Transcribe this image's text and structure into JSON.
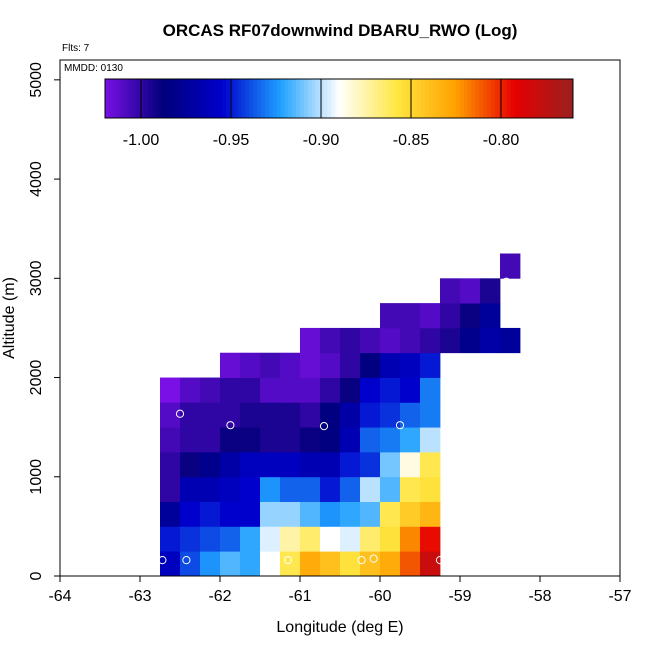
{
  "chart_data": {
    "type": "heatmap",
    "title": "ORCAS RF07downwind DBARU_RWO (Log)",
    "annotations": {
      "flights": "Flts: 7",
      "date": "MMDD: 0130"
    },
    "xlabel": "Longitude (deg E)",
    "ylabel": "Altitude (m)",
    "xlim": [
      -64,
      -57
    ],
    "ylim": [
      0,
      5200
    ],
    "xticks": [
      -64,
      -63,
      -62,
      -61,
      -60,
      -59,
      -58,
      -57
    ],
    "xtick_labels": [
      "-64",
      "-63",
      "-62",
      "-61",
      "-60",
      "-59",
      "-58",
      "-57"
    ],
    "yticks": [
      0,
      1000,
      2000,
      3000,
      4000,
      5000
    ],
    "ytick_labels": [
      "0",
      "1000",
      "2000",
      "3000",
      "4000",
      "5000"
    ],
    "colorbar": {
      "min": -1.02,
      "max": -0.76,
      "ticks": [
        -1.0,
        -0.95,
        -0.9,
        -0.85,
        -0.8
      ],
      "tick_labels": [
        "-1.00",
        "-0.95",
        "-0.90",
        "-0.85",
        "-0.80"
      ],
      "colors": [
        "#7a10e6",
        "#00007a",
        "#0000cc",
        "#1ea0ff",
        "#ffffff",
        "#ffe640",
        "#ffa000",
        "#e60000",
        "#9a2020"
      ]
    },
    "cell": {
      "lon_width": 0.25,
      "alt_height": 250
    },
    "rows": [
      {
        "alt": 0,
        "lon0": -62.75,
        "values": [
          -0.96,
          -0.94,
          -0.925,
          -0.915,
          -0.92,
          -0.89,
          -0.86,
          -0.83,
          -0.84,
          -0.855,
          -0.84,
          -0.83,
          -0.81,
          -0.78
        ]
      },
      {
        "alt": 250,
        "lon0": -62.75,
        "values": [
          -0.95,
          -0.945,
          -0.94,
          -0.935,
          -0.92,
          -0.895,
          -0.875,
          -0.865,
          -0.89,
          -0.895,
          -0.865,
          -0.855,
          -0.82,
          -0.795
        ]
      },
      {
        "alt": 500,
        "lon0": -62.75,
        "values": [
          -0.975,
          -0.955,
          -0.95,
          -0.955,
          -0.955,
          -0.905,
          -0.905,
          -0.915,
          -0.925,
          -0.92,
          -0.915,
          -0.86,
          -0.845,
          -0.835
        ]
      },
      {
        "alt": 750,
        "lon0": -62.75,
        "values": [
          -1.0,
          -0.965,
          -0.965,
          -0.96,
          -0.955,
          -0.925,
          -0.935,
          -0.935,
          -0.95,
          -0.935,
          -0.9,
          -0.915,
          -0.86,
          -0.855
        ]
      },
      {
        "alt": 1000,
        "lon0": -62.75,
        "values": [
          -1.0,
          -0.99,
          -0.98,
          -0.97,
          -0.96,
          -0.96,
          -0.96,
          -0.965,
          -0.965,
          -0.95,
          -0.945,
          -0.91,
          -0.885,
          -0.86
        ]
      },
      {
        "alt": 1250,
        "lon0": -62.75,
        "values": [
          -1.005,
          -1.0,
          -1.0,
          -0.99,
          -0.99,
          -0.995,
          -0.995,
          -0.99,
          -0.985,
          -0.965,
          -0.935,
          -0.93,
          -0.92,
          -0.9
        ]
      },
      {
        "alt": 1500,
        "lon0": -62.75,
        "values": [
          -1.01,
          -1.0,
          -1.0,
          -1.0,
          -0.995,
          -0.995,
          -0.995,
          -1.0,
          -0.985,
          -0.97,
          -0.95,
          -0.945,
          -0.935,
          -0.93
        ]
      },
      {
        "alt": 1750,
        "lon0": -62.75,
        "values": [
          -1.02,
          -1.01,
          -1.005,
          -1.0,
          -1.0,
          -1.01,
          -1.01,
          -1.01,
          -1.0,
          -0.99,
          -0.955,
          -0.95,
          -0.955,
          -0.93
        ]
      },
      {
        "alt": 2000,
        "lon0": -62.0,
        "values": [
          -1.015,
          -1.01,
          -1.005,
          -1.01,
          -1.015,
          -1.01,
          -1.0,
          -0.985,
          -0.965,
          -0.96,
          -0.95
        ]
      },
      {
        "alt": 2250,
        "lon0": -61.0,
        "values": [
          -1.015,
          -1.005,
          -1.0,
          -1.005,
          -1.01,
          -1.005,
          -1.0,
          -0.995,
          -0.98,
          -0.97,
          -0.975
        ]
      },
      {
        "alt": 2500,
        "lon0": -60.0,
        "values": [
          -1.005,
          -1.005,
          -1.01,
          -1.0,
          -0.99,
          -0.975
        ]
      },
      {
        "alt": 2750,
        "lon0": -59.25,
        "values": [
          -1.005,
          -1.01,
          -0.995
        ]
      },
      {
        "alt": 3000,
        "lon0": -58.5,
        "values": [
          -1.005
        ]
      }
    ],
    "markers": [
      {
        "lon": -62.72,
        "alt": 160
      },
      {
        "lon": -62.42,
        "alt": 160
      },
      {
        "lon": -61.15,
        "alt": 160
      },
      {
        "lon": -60.23,
        "alt": 160
      },
      {
        "lon": -60.08,
        "alt": 175
      },
      {
        "lon": -59.25,
        "alt": 160
      },
      {
        "lon": -62.5,
        "alt": 1635
      },
      {
        "lon": -61.87,
        "alt": 1520
      },
      {
        "lon": -60.7,
        "alt": 1510
      },
      {
        "lon": -59.75,
        "alt": 1520
      },
      {
        "lon": -58.42,
        "alt": 2965
      }
    ]
  }
}
